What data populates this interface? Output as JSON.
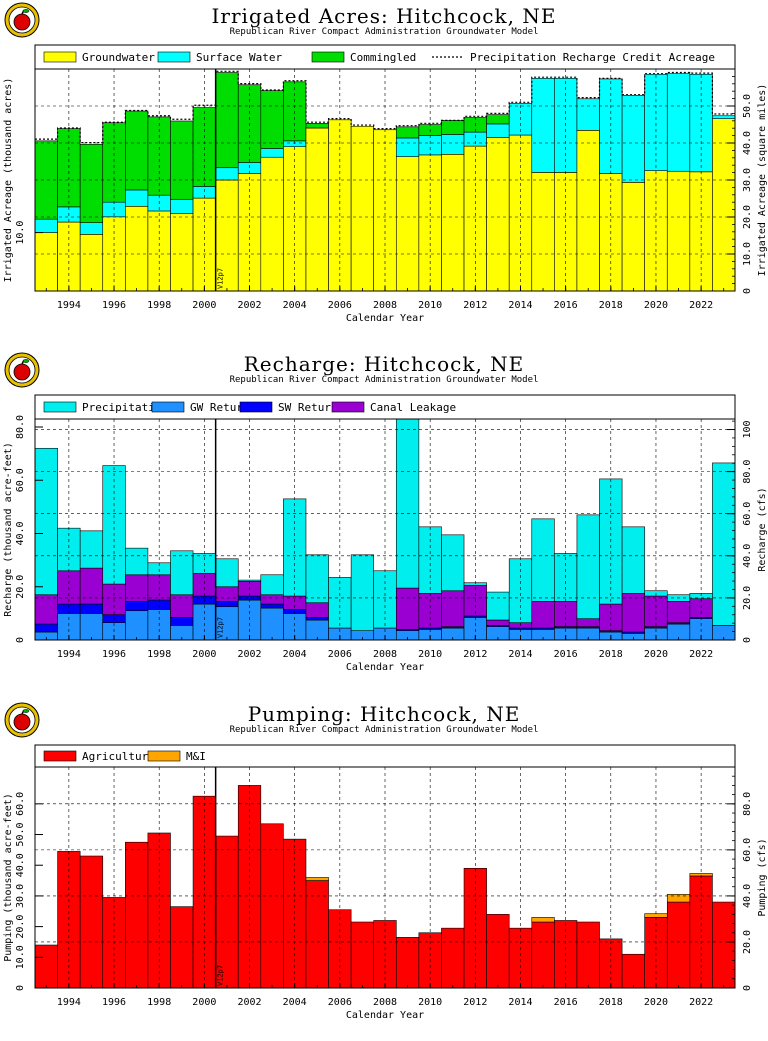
{
  "chart_data": [
    {
      "type": "bar",
      "stacked": true,
      "title": "Irrigated Acres: Hitchcock, NE",
      "subtitle": "Republican River Compact Administration Groundwater Model",
      "xlabel": "Calendar Year",
      "ylabel": "Irrigated Acreage (thousand acres)",
      "y2label": "Irrigated Acreage (square miles)",
      "x": [
        1993,
        1994,
        1995,
        1996,
        1997,
        1998,
        1999,
        2000,
        2001,
        2002,
        2003,
        2004,
        2005,
        2006,
        2007,
        2008,
        2009,
        2010,
        2011,
        2012,
        2013,
        2014,
        2015,
        2016,
        2017,
        2018,
        2019,
        2020,
        2021,
        2022,
        2023
      ],
      "xticks": [
        "1994",
        "1996",
        "1998",
        "2000",
        "2002",
        "2004",
        "2006",
        "2008",
        "2010",
        "2012",
        "2014",
        "2016",
        "2018",
        "2020",
        "2022"
      ],
      "ylim": [
        0,
        38
      ],
      "yticks": [
        "10.0"
      ],
      "y2ticks": [
        "0",
        "10.0",
        "20.0",
        "30.0",
        "40.0",
        "50.0"
      ],
      "series": [
        {
          "name": "Groundwater",
          "color": "#ffff00",
          "values": [
            10.0,
            11.8,
            9.7,
            12.7,
            14.5,
            13.7,
            13.3,
            15.9,
            19.0,
            20.1,
            22.9,
            24.7,
            27.9,
            29.3,
            28.2,
            27.6,
            23.0,
            23.3,
            23.4,
            24.8,
            26.3,
            26.7,
            20.3,
            20.3,
            27.5,
            20.1,
            18.6,
            20.6,
            20.5,
            20.4,
            29.5
          ]
        },
        {
          "name": "Surface Water",
          "color": "#00ffff",
          "values": [
            2.3,
            2.6,
            2.0,
            2.5,
            2.8,
            2.7,
            2.4,
            2.0,
            2.1,
            1.9,
            1.5,
            1.0,
            0.0,
            0.0,
            0.0,
            0.0,
            3.2,
            3.3,
            3.4,
            2.4,
            2.3,
            5.4,
            16.1,
            16.1,
            5.4,
            16.2,
            14.9,
            16.5,
            16.7,
            16.7,
            0.5
          ]
        },
        {
          "name": "Commingled",
          "color": "#00dd00",
          "values": [
            13.4,
            13.4,
            13.4,
            13.6,
            13.5,
            13.4,
            13.4,
            13.5,
            16.3,
            13.3,
            9.9,
            10.1,
            0.8,
            0.0,
            0.0,
            0.0,
            1.9,
            1.9,
            2.4,
            2.5,
            1.6,
            0.0,
            0.0,
            0.0,
            0.0,
            0.0,
            0.0,
            0.0,
            0.0,
            0.0,
            0.0
          ]
        }
      ],
      "recharge_credit": [
        26.0,
        27.9,
        25.4,
        28.9,
        30.9,
        30.0,
        29.4,
        31.8,
        37.6,
        35.5,
        34.4,
        36.0,
        28.9,
        29.5,
        28.4,
        27.8,
        28.3,
        28.7,
        29.2,
        29.9,
        30.4,
        32.3,
        36.6,
        36.6,
        33.1,
        36.4,
        33.6,
        37.2,
        37.4,
        37.3,
        30.3
      ],
      "legend": [
        "Groundwater",
        "Surface Water",
        "Commingled",
        "Precipitation Recharge Credit Acreage"
      ],
      "marker": {
        "year": 2000.5,
        "label": "V12p7"
      }
    },
    {
      "type": "bar",
      "stacked": true,
      "title": "Recharge: Hitchcock, NE",
      "subtitle": "Republican River Compact Administration Groundwater Model",
      "xlabel": "Calendar Year",
      "ylabel": "Recharge (thousand acre-feet)",
      "y2label": "Recharge (cfs)",
      "x": [
        1993,
        1994,
        1995,
        1996,
        1997,
        1998,
        1999,
        2000,
        2001,
        2002,
        2003,
        2004,
        2005,
        2006,
        2007,
        2008,
        2009,
        2010,
        2011,
        2012,
        2013,
        2014,
        2015,
        2016,
        2017,
        2018,
        2019,
        2020,
        2021,
        2022,
        2023
      ],
      "xticks": [
        "1994",
        "1996",
        "1998",
        "2000",
        "2002",
        "2004",
        "2006",
        "2008",
        "2010",
        "2012",
        "2014",
        "2016",
        "2018",
        "2020",
        "2022"
      ],
      "ylim": [
        0,
        83
      ],
      "yticks": [
        "0",
        "20.0",
        "40.0",
        "60.0",
        "80.0"
      ],
      "y2ticks": [
        "0",
        "20.0",
        "40.0",
        "60.0",
        "80.0",
        "100"
      ],
      "series": [
        {
          "name": "GW Returns",
          "color": "#1e90ff",
          "values": [
            3.0,
            10.0,
            10.0,
            6.5,
            11.0,
            11.5,
            5.5,
            13.5,
            12.5,
            15.0,
            12.0,
            10.0,
            7.5,
            4.5,
            3.5,
            4.5,
            3.5,
            4.0,
            4.5,
            8.5,
            5.0,
            4.0,
            4.0,
            4.5,
            4.5,
            3.0,
            2.5,
            4.5,
            6.0,
            8.0,
            5.5
          ]
        },
        {
          "name": "SW Returns",
          "color": "#0000ff",
          "values": [
            3.0,
            3.5,
            3.5,
            3.0,
            3.5,
            3.5,
            3.0,
            3.0,
            2.0,
            1.5,
            1.5,
            1.5,
            1.0,
            0.0,
            0.0,
            0.0,
            0.5,
            0.5,
            0.5,
            0.5,
            0.5,
            0.5,
            0.5,
            0.5,
            0.5,
            0.5,
            0.5,
            0.5,
            0.5,
            0.5,
            0.0
          ]
        },
        {
          "name": "Canal Leakage",
          "color": "#9b00d3",
          "values": [
            11.0,
            12.5,
            13.5,
            11.5,
            10.0,
            9.5,
            8.5,
            8.5,
            5.5,
            5.5,
            3.5,
            5.0,
            5.5,
            0.0,
            0.0,
            0.0,
            15.5,
            13.0,
            13.5,
            11.5,
            2.0,
            2.0,
            10.0,
            9.5,
            3.0,
            10.0,
            14.5,
            11.5,
            8.0,
            7.0,
            0.0
          ]
        },
        {
          "name": "Precipitation",
          "color": "#00eeee",
          "values": [
            55.0,
            16.0,
            14.0,
            44.5,
            10.0,
            4.5,
            16.5,
            7.5,
            10.5,
            0.5,
            7.5,
            36.5,
            18.0,
            19.0,
            28.5,
            21.5,
            63.5,
            25.0,
            21.0,
            1.0,
            10.5,
            24.0,
            31.0,
            18.0,
            39.0,
            47.0,
            25.0,
            2.0,
            2.5,
            2.0,
            61.0
          ]
        }
      ],
      "legend": [
        "Precipitation",
        "GW Returns",
        "SW Returns",
        "Canal Leakage"
      ],
      "marker": {
        "year": 2000.5,
        "label": "V12p7"
      }
    },
    {
      "type": "bar",
      "stacked": true,
      "title": "Pumping: Hitchcock, NE",
      "subtitle": "Republican River Compact Administration Groundwater Model",
      "xlabel": "Calendar Year",
      "ylabel": "Pumping (thousand acre-feet)",
      "y2label": "Pumping (cfs)",
      "x": [
        1993,
        1994,
        1995,
        1996,
        1997,
        1998,
        1999,
        2000,
        2001,
        2002,
        2003,
        2004,
        2005,
        2006,
        2007,
        2008,
        2009,
        2010,
        2011,
        2012,
        2013,
        2014,
        2015,
        2016,
        2017,
        2018,
        2019,
        2020,
        2021,
        2022,
        2023
      ],
      "xticks": [
        "1994",
        "1996",
        "1998",
        "2000",
        "2002",
        "2004",
        "2006",
        "2008",
        "2010",
        "2012",
        "2014",
        "2016",
        "2018",
        "2020",
        "2022"
      ],
      "ylim": [
        0,
        72
      ],
      "yticks": [
        "0",
        "10.0",
        "20.0",
        "30.0",
        "40.0",
        "50.0",
        "60.0"
      ],
      "y2ticks": [
        "0",
        "20.0",
        "40.0",
        "60.0",
        "80.0"
      ],
      "series": [
        {
          "name": "Agricultural",
          "color": "#ff0000",
          "values": [
            14.0,
            44.5,
            43.0,
            29.5,
            47.5,
            50.5,
            26.5,
            62.5,
            49.5,
            66.0,
            53.5,
            48.5,
            35.0,
            25.5,
            21.5,
            22.0,
            16.5,
            18.0,
            19.5,
            39.0,
            24.0,
            19.5,
            21.5,
            22.0,
            21.5,
            16.0,
            11.0,
            23.0,
            28.0,
            36.5,
            28.0
          ]
        },
        {
          "name": "M&I",
          "color": "#ffa500",
          "values": [
            0.0,
            0.0,
            0.0,
            0.0,
            0.0,
            0.0,
            0.0,
            0.0,
            0.0,
            0.0,
            0.0,
            0.0,
            1.0,
            0.0,
            0.0,
            0.0,
            0.0,
            0.0,
            0.0,
            0.0,
            0.0,
            0.0,
            1.5,
            0.0,
            0.0,
            0.0,
            0.0,
            1.2,
            2.5,
            0.8,
            0.0
          ]
        }
      ],
      "legend": [
        "Agricultural",
        "M&I"
      ],
      "marker": {
        "year": 2000.5,
        "label": "V12p7"
      }
    }
  ]
}
